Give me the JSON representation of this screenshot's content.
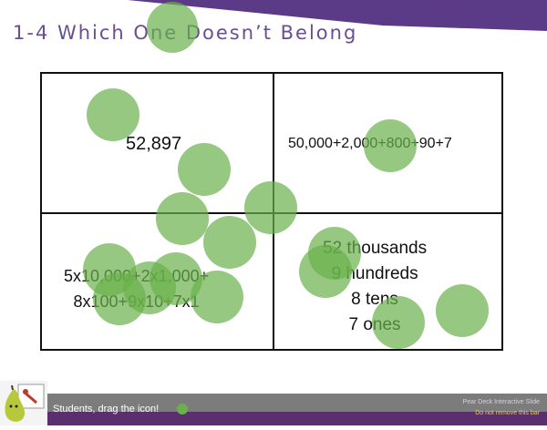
{
  "slide": {
    "title": "1-4 Which One Doesn’t Belong"
  },
  "quadrants": {
    "top_left": "52,897",
    "top_right": "50,000+2,000+800+90+7",
    "bottom_left": [
      "5x10,000+2x1,000+",
      "8x100+9x10+7x1"
    ],
    "bottom_right": [
      "52 thousands",
      "9 hundreds",
      "8 tens",
      "7 ones"
    ]
  },
  "footer": {
    "drag_label": "Students, drag the icon!",
    "peardeck_title": "Pear Deck Interactive Slide",
    "peardeck_note": "Do not remove this bar"
  },
  "colors": {
    "dot": "#6ab04c",
    "banner": "#5b3b87",
    "footer_purple": "#5a2f6e"
  },
  "icons": {
    "pear": "pear-logo-icon",
    "drag_dot": "green-dot-icon"
  }
}
